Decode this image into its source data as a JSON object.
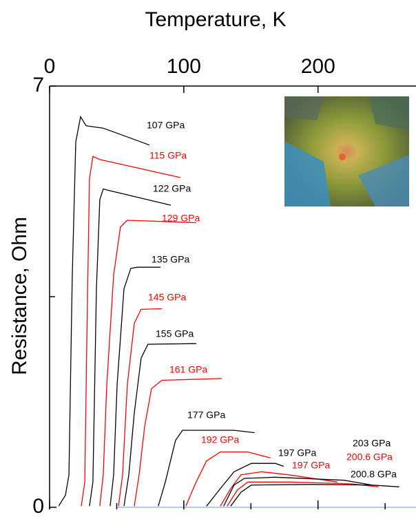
{
  "chart_data": {
    "type": "line",
    "x_label": "Temperature, K",
    "y_label": "Resistance, Ohm",
    "xlim": [
      0,
      273
    ],
    "ylim": [
      0,
      7
    ],
    "xticks": [
      0,
      100,
      200
    ],
    "yticks": [
      0,
      7
    ],
    "x_minor_ticks": [
      50,
      150,
      250
    ],
    "y_minor_ticks": [
      3.5
    ],
    "series": [
      {
        "name": "107 GPa",
        "color": "#000000",
        "x": [
          6.7,
          11.8,
          14.4,
          16.9,
          19.5,
          23.1,
          27.2,
          40,
          74.4
        ],
        "values": [
          0.02,
          0.2,
          0.54,
          3.83,
          6.07,
          6.49,
          6.34,
          6.3,
          6.02
        ]
      },
      {
        "name": "115 GPa",
        "color": "#ff0000",
        "x": [
          23.6,
          26.2,
          27.7,
          29.7,
          32.3,
          37.4,
          97.4
        ],
        "values": [
          0.02,
          0.42,
          2.75,
          5.46,
          5.83,
          5.78,
          5.48
        ]
      },
      {
        "name": "122 GPa",
        "color": "#000000",
        "x": [
          29.7,
          32.3,
          34.9,
          37.4,
          40,
          45.1,
          90.3
        ],
        "values": [
          0.02,
          0.42,
          3.63,
          5.11,
          5.29,
          5.26,
          5.02
        ]
      },
      {
        "name": "129 GPa",
        "color": "#ff0000",
        "x": [
          37.4,
          40,
          42.6,
          47.7,
          52.8,
          57.9,
          109.2
        ],
        "values": [
          0.02,
          0.54,
          2.03,
          3.86,
          4.66,
          4.77,
          4.73
        ]
      },
      {
        "name": "135 GPa",
        "color": "#000000",
        "x": [
          45.1,
          47.7,
          50.3,
          55.4,
          60.5,
          65.6,
          82.6
        ],
        "values": [
          0.02,
          0.54,
          2.03,
          3.63,
          3.97,
          3.99,
          3.99
        ]
      },
      {
        "name": "145 GPa",
        "color": "#ff0000",
        "x": [
          51.3,
          54.4,
          57.9,
          63.1,
          68.2,
          83.6
        ],
        "values": [
          0.02,
          0.54,
          2.03,
          3.06,
          3.29,
          3.3
        ]
      },
      {
        "name": "155 GPa",
        "color": "#000000",
        "x": [
          55.4,
          59,
          63.1,
          68.2,
          73.3,
          109.2
        ],
        "values": [
          0.02,
          0.54,
          1.57,
          2.48,
          2.71,
          2.72
        ]
      },
      {
        "name": "161 GPa",
        "color": "#ff0000",
        "x": [
          63.1,
          66.7,
          70.8,
          75.9,
          83.6,
          128.2
        ],
        "values": [
          0.02,
          0.54,
          1.34,
          1.97,
          2.11,
          2.14
        ]
      },
      {
        "name": "177 GPa",
        "color": "#000000",
        "x": [
          81,
          86.2,
          93.8,
          99,
          137.4,
          152.8
        ],
        "values": [
          0.02,
          0.42,
          1.11,
          1.28,
          1.28,
          1.24
        ]
      },
      {
        "name": "192 GPa",
        "color": "#ff0000",
        "x": [
          101.5,
          109.2,
          116.9,
          127.2,
          147.7,
          164.6
        ],
        "values": [
          0.02,
          0.42,
          0.77,
          0.92,
          0.92,
          0.82
        ]
      },
      {
        "name": "197 GPa",
        "color": "#000000",
        "x": [
          116.9,
          127.2,
          137.4,
          150.3,
          168.2,
          174.4
        ],
        "values": [
          0.02,
          0.31,
          0.59,
          0.73,
          0.73,
          0.68
        ]
      },
      {
        "name": "197 GPa",
        "color": "#ff0000",
        "x": [
          127.2,
          134.9,
          142.6,
          157.9,
          178.5,
          214.4
        ],
        "values": [
          0.02,
          0.31,
          0.54,
          0.59,
          0.54,
          0.42
        ]
      },
      {
        "name": "203 GPa",
        "color": "#000000",
        "x": [
          129.7,
          137.4,
          145.1,
          168.2,
          219.5,
          240
        ],
        "values": [
          0.02,
          0.37,
          0.48,
          0.5,
          0.45,
          0.37
        ]
      },
      {
        "name": "200.6 GPa",
        "color": "#ff0000",
        "x": [
          132.3,
          140,
          147.7,
          178.5,
          224.6,
          245.1
        ],
        "values": [
          0.02,
          0.29,
          0.42,
          0.42,
          0.39,
          0.34
        ]
      },
      {
        "name": "200.8 GPa",
        "color": "#000000",
        "x": [
          134.9,
          142.6,
          150.3,
          193.8,
          240,
          260.5
        ],
        "values": [
          0.02,
          0.25,
          0.37,
          0.38,
          0.37,
          0.34
        ]
      }
    ]
  }
}
